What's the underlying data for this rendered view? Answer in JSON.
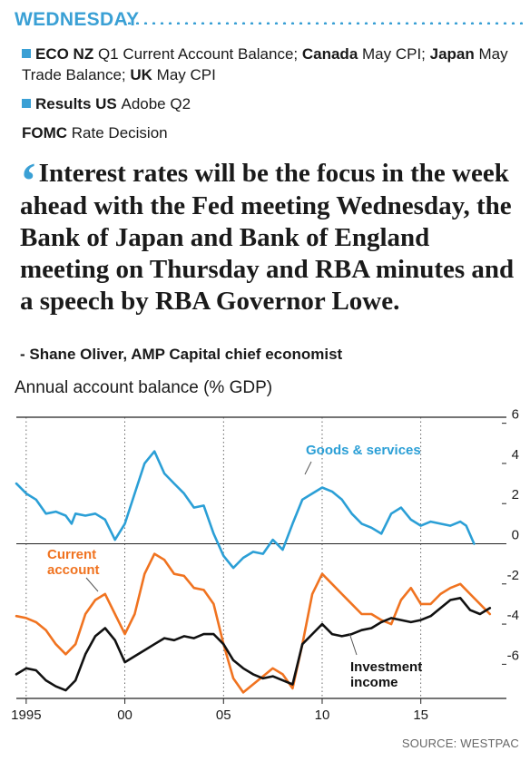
{
  "header": {
    "day": "WEDNESDAY"
  },
  "events": [
    {
      "parts": [
        {
          "t": "ECO NZ ",
          "b": true
        },
        {
          "t": "Q1 Current Account Balance; ",
          "b": false
        },
        {
          "t": "Canada ",
          "b": true
        },
        {
          "t": "May CPI; ",
          "b": false
        },
        {
          "t": "Japan ",
          "b": true
        },
        {
          "t": "May Trade Balance; ",
          "b": false
        },
        {
          "t": "UK ",
          "b": true
        },
        {
          "t": "May CPI",
          "b": false
        }
      ],
      "square": true
    },
    {
      "parts": [
        {
          "t": "Results US ",
          "b": true
        },
        {
          "t": "Adobe Q2",
          "b": false
        }
      ],
      "square": true
    },
    {
      "parts": [
        {
          "t": "FOMC ",
          "b": true
        },
        {
          "t": "Rate Decision",
          "b": false
        }
      ],
      "square": false
    }
  ],
  "quote": {
    "text": "Interest rates will be the focus in the week ahead with the Fed meeting Wednesday, the Bank of Japan and Bank of England meeting on Thursday and RBA minutes and a speech by RBA Governor Lowe.",
    "attribution": "- Shane Oliver, AMP Capital chief economist"
  },
  "source": "SOURCE: WESTPAC",
  "colors": {
    "accent": "#3aa0d5",
    "goods": "#2b9fd6",
    "current": "#f07320",
    "investment": "#111111"
  },
  "chart_data": {
    "type": "line",
    "title": "Annual account balance (% GDP)",
    "xlim": [
      1994.5,
      2019.2
    ],
    "ylim": [
      -7.7,
      6.3
    ],
    "x_ticks": [
      1995,
      2000,
      2005,
      2010,
      2015
    ],
    "x_tick_labels": [
      "1995",
      "00",
      "05",
      "10",
      "15"
    ],
    "y_ticks": [
      6,
      4,
      2,
      0,
      -2,
      -4,
      -6
    ],
    "y_tick_labels": [
      "6",
      "4",
      "2",
      "0",
      "-2",
      "-4",
      "-6"
    ],
    "grid": "vertical dashed at x ticks",
    "series": [
      {
        "name": "Goods & services",
        "label_lines": [
          "Goods & services"
        ],
        "color": "#2b9fd6",
        "x": [
          1994.5,
          1995.0,
          1995.5,
          1996.0,
          1996.5,
          1997.0,
          1997.3,
          1997.5,
          1998.0,
          1998.5,
          1999.0,
          1999.5,
          2000.0,
          2000.5,
          2001.0,
          2001.5,
          2002.0,
          2002.5,
          2003.0,
          2003.5,
          2004.0,
          2004.5,
          2005.0,
          2005.5,
          2006.0,
          2006.5,
          2007.0,
          2007.5,
          2008.0,
          2008.5,
          2009.0,
          2009.5,
          2010.0,
          2010.5,
          2011.0,
          2011.5,
          2012.0,
          2012.5,
          2013.0,
          2013.5,
          2014.0,
          2014.5,
          2015.0,
          2015.5,
          2016.0,
          2016.5,
          2017.0,
          2017.3,
          2017.7
        ],
        "y": [
          3.0,
          2.5,
          2.2,
          1.5,
          1.6,
          1.4,
          1.0,
          1.5,
          1.4,
          1.5,
          1.2,
          0.2,
          1.0,
          2.5,
          4.0,
          4.6,
          3.5,
          3.0,
          2.5,
          1.8,
          1.9,
          0.5,
          -0.6,
          -1.2,
          -0.7,
          -0.4,
          -0.5,
          0.2,
          -0.3,
          1.0,
          2.2,
          2.5,
          2.8,
          2.6,
          2.2,
          1.5,
          1.0,
          0.8,
          0.5,
          1.5,
          1.8,
          1.2,
          0.9,
          1.1,
          1.0,
          0.9,
          1.1,
          0.9,
          0.0
        ]
      },
      {
        "name": "Current account",
        "label_lines": [
          "Current",
          "account"
        ],
        "color": "#f07320",
        "x": [
          1994.5,
          1995.0,
          1995.5,
          1996.0,
          1996.5,
          1997.0,
          1997.5,
          1998.0,
          1998.5,
          1999.0,
          1999.5,
          2000.0,
          2000.5,
          2001.0,
          2001.5,
          2002.0,
          2002.5,
          2003.0,
          2003.5,
          2004.0,
          2004.5,
          2005.0,
          2005.5,
          2006.0,
          2006.5,
          2007.0,
          2007.5,
          2008.0,
          2008.5,
          2009.0,
          2009.5,
          2010.0,
          2010.5,
          2011.0,
          2011.5,
          2012.0,
          2012.5,
          2013.0,
          2013.5,
          2014.0,
          2014.5,
          2015.0,
          2015.5,
          2016.0,
          2016.5,
          2017.0,
          2017.5,
          2018.0,
          2018.5
        ],
        "y": [
          -3.6,
          -3.7,
          -3.9,
          -4.3,
          -5.0,
          -5.5,
          -5.0,
          -3.5,
          -2.8,
          -2.5,
          -3.5,
          -4.5,
          -3.5,
          -1.5,
          -0.5,
          -0.8,
          -1.5,
          -1.6,
          -2.2,
          -2.3,
          -3.0,
          -5.0,
          -6.7,
          -7.4,
          -7.0,
          -6.6,
          -6.2,
          -6.5,
          -7.2,
          -5.0,
          -2.5,
          -1.5,
          -2.0,
          -2.5,
          -3.0,
          -3.5,
          -3.5,
          -3.8,
          -4.0,
          -2.8,
          -2.2,
          -3.0,
          -3.0,
          -2.5,
          -2.2,
          -2.0,
          -2.5,
          -3.0,
          -3.5
        ]
      },
      {
        "name": "Investment income",
        "label_lines": [
          "Investment",
          "income"
        ],
        "color": "#111111",
        "x": [
          1994.5,
          1995.0,
          1995.5,
          1996.0,
          1996.5,
          1997.0,
          1997.5,
          1998.0,
          1998.5,
          1999.0,
          1999.5,
          2000.0,
          2000.5,
          2001.0,
          2001.5,
          2002.0,
          2002.5,
          2003.0,
          2003.5,
          2004.0,
          2004.5,
          2005.0,
          2005.5,
          2006.0,
          2006.5,
          2007.0,
          2007.5,
          2008.0,
          2008.5,
          2009.0,
          2009.5,
          2010.0,
          2010.5,
          2011.0,
          2011.5,
          2012.0,
          2012.5,
          2013.0,
          2013.5,
          2014.0,
          2014.5,
          2015.0,
          2015.5,
          2016.0,
          2016.5,
          2017.0,
          2017.5,
          2018.0,
          2018.5
        ],
        "y": [
          -6.5,
          -6.2,
          -6.3,
          -6.8,
          -7.1,
          -7.3,
          -6.8,
          -5.5,
          -4.6,
          -4.2,
          -4.8,
          -5.9,
          -5.6,
          -5.3,
          -5.0,
          -4.7,
          -4.8,
          -4.6,
          -4.7,
          -4.5,
          -4.5,
          -5.0,
          -5.8,
          -6.2,
          -6.5,
          -6.7,
          -6.6,
          -6.8,
          -7.0,
          -5.0,
          -4.5,
          -4.0,
          -4.5,
          -4.6,
          -4.5,
          -4.3,
          -4.2,
          -3.9,
          -3.7,
          -3.8,
          -3.9,
          -3.8,
          -3.6,
          -3.2,
          -2.8,
          -2.7,
          -3.3,
          -3.5,
          -3.2
        ]
      }
    ]
  }
}
